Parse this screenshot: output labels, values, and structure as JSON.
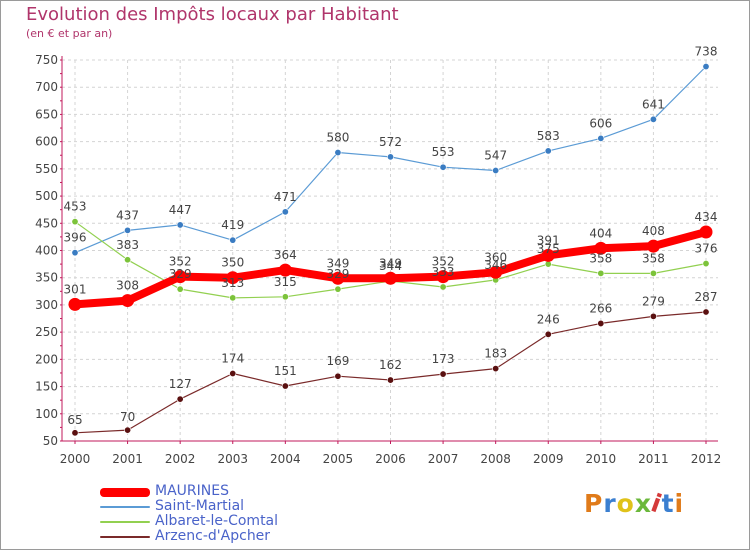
{
  "title": "Evolution des Impôts locaux par Habitant",
  "subtitle": "(en € et par an)",
  "logo_text": "Proxiti",
  "logo_colors": [
    "#e07b1a",
    "#3b7fd0",
    "#e0c21a",
    "#6bb83b",
    "#d43a3a",
    "#3b7fd0",
    "#e07b1a"
  ],
  "chart_data": {
    "type": "line",
    "x": [
      "2000",
      "2001",
      "2002",
      "2003",
      "2004",
      "2005",
      "2006",
      "2007",
      "2008",
      "2009",
      "2010",
      "2011",
      "2012"
    ],
    "ylim": [
      50,
      750
    ],
    "yticks": [
      "50",
      "100",
      "150",
      "200",
      "250",
      "300",
      "350",
      "400",
      "450",
      "500",
      "550",
      "600",
      "650",
      "700",
      "750"
    ],
    "grid": true,
    "legend_position": "bottom-left",
    "series": [
      {
        "name": "MAURINES",
        "color": "#ff0000",
        "values": [
          301,
          308,
          352,
          350,
          364,
          349,
          349,
          352,
          360,
          391,
          404,
          408,
          434
        ]
      },
      {
        "name": "Saint-Martial",
        "color": "#5b9bd5",
        "values": [
          396,
          437,
          447,
          419,
          471,
          580,
          572,
          553,
          547,
          583,
          606,
          641,
          738
        ]
      },
      {
        "name": "Albaret-le-Comtal",
        "color": "#92d050",
        "values": [
          453,
          383,
          329,
          313,
          315,
          329,
          344,
          333,
          346,
          375,
          358,
          358,
          376
        ]
      },
      {
        "name": "Arzenc-d'Apcher",
        "color": "#6b1a1a",
        "values": [
          65,
          70,
          127,
          174,
          151,
          169,
          162,
          173,
          183,
          246,
          266,
          279,
          287
        ]
      }
    ]
  }
}
